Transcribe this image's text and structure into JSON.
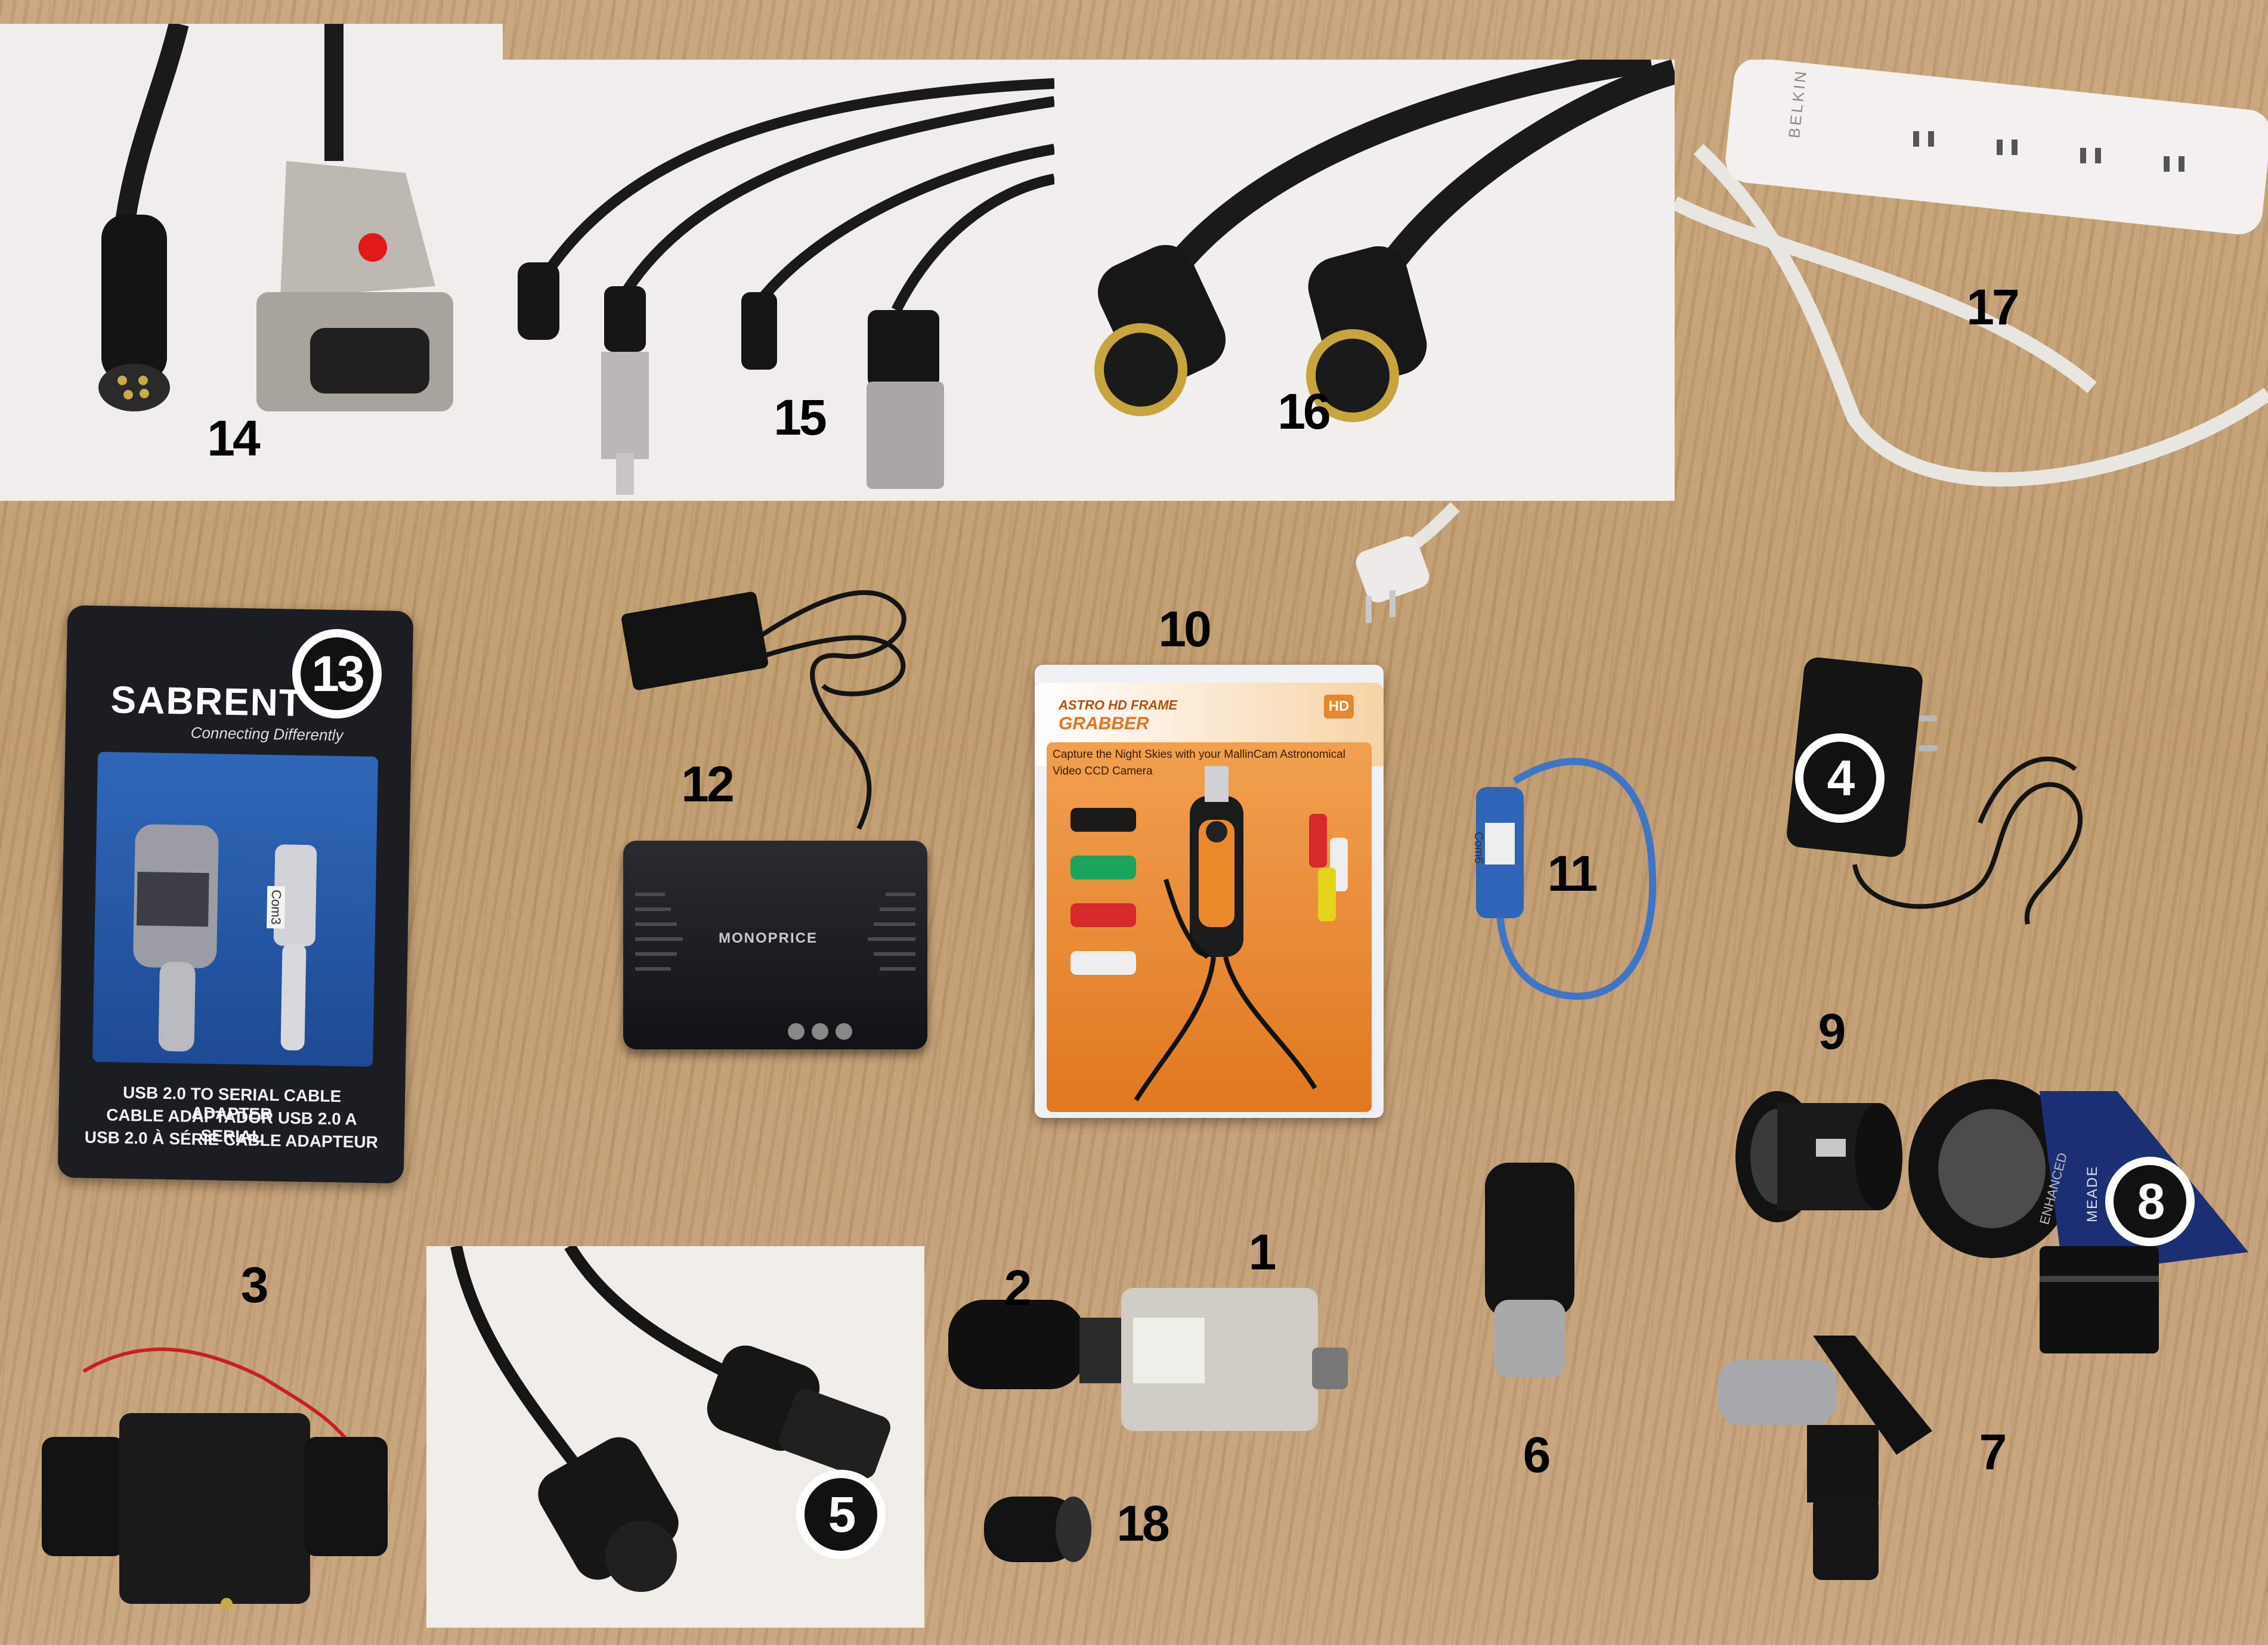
{
  "badges": [
    {
      "id": "1",
      "style": "light"
    },
    {
      "id": "2",
      "style": "light"
    },
    {
      "id": "3",
      "style": "light"
    },
    {
      "id": "4",
      "style": "dark"
    },
    {
      "id": "5",
      "style": "light"
    },
    {
      "id": "6",
      "style": "light"
    },
    {
      "id": "7",
      "style": "light"
    },
    {
      "id": "8",
      "style": "dark"
    },
    {
      "id": "9",
      "style": "light"
    },
    {
      "id": "10",
      "style": "light"
    },
    {
      "id": "11",
      "style": "light"
    },
    {
      "id": "12",
      "style": "light"
    },
    {
      "id": "13",
      "style": "dark"
    },
    {
      "id": "14",
      "style": "light"
    },
    {
      "id": "15",
      "style": "light"
    },
    {
      "id": "16",
      "style": "light"
    },
    {
      "id": "17",
      "style": "light"
    },
    {
      "id": "18",
      "style": "light"
    }
  ],
  "product_text": {
    "power_strip_brand": "BELKIN",
    "sabrent_brand": "SABRENT",
    "sabrent_tagline": "Connecting Differently",
    "sabrent_line1": "USB 2.0 TO SERIAL CABLE ADAPTER",
    "sabrent_line2": "CABLE ADAPTADOR USB 2.0 A SERIAL",
    "sabrent_line3": "USB 2.0 À SÉRIE CABLE ADAPTEUR",
    "sabrent_sticker": "Com3",
    "monoprice_brand": "MONOPRICE",
    "grabber_title1": "ASTRO HD FRAME",
    "grabber_title2": "GRABBER",
    "grabber_hd": "HD",
    "grabber_tagline": "Capture the Night Skies with your MallinCam Astronomical",
    "grabber_tagline2": "Video CCD Camera",
    "usb_sticker": "Com6",
    "meade_brand": "MEADE",
    "enhanced_text": "ENHANCED"
  },
  "colors": {
    "badge_light_bg": "#ffffff",
    "badge_dark_bg": "#111111",
    "wood": "#c4a175",
    "sabrent_blue": "#1f4fa0",
    "grabber_orange": "#e8862c",
    "meade_blue": "#1b2d6e"
  }
}
